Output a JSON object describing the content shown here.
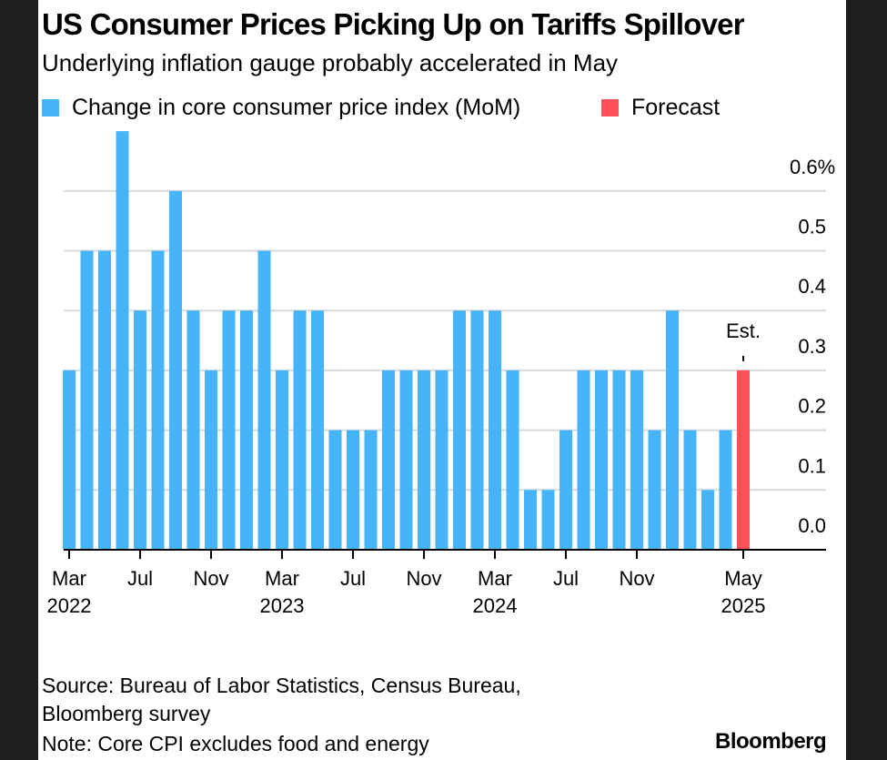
{
  "title": "US Consumer Prices Picking Up on Tariffs Spillover",
  "subtitle": "Underlying inflation gauge probably accelerated in May",
  "legend": [
    {
      "label": "Change in core consumer price index (MoM)",
      "color": "#45b4f8"
    },
    {
      "label": "Forecast",
      "color": "#ff4f59"
    }
  ],
  "chart_data": {
    "type": "bar",
    "categories": [
      "Mar 2022",
      "Apr 2022",
      "May 2022",
      "Jun 2022",
      "Jul 2022",
      "Aug 2022",
      "Sep 2022",
      "Oct 2022",
      "Nov 2022",
      "Dec 2022",
      "Jan 2023",
      "Feb 2023",
      "Mar 2023",
      "Apr 2023",
      "May 2023",
      "Jun 2023",
      "Jul 2023",
      "Aug 2023",
      "Sep 2023",
      "Oct 2023",
      "Nov 2023",
      "Dec 2023",
      "Jan 2024",
      "Feb 2024",
      "Mar 2024",
      "Apr 2024",
      "May 2024",
      "Jun 2024",
      "Jul 2024",
      "Aug 2024",
      "Sep 2024",
      "Oct 2024",
      "Nov 2024",
      "Dec 2024",
      "Jan 2025",
      "Feb 2025",
      "Mar 2025",
      "Apr 2025",
      "May 2025"
    ],
    "series": [
      {
        "name": "Change in core consumer price index (MoM)",
        "values": [
          0.3,
          0.5,
          0.5,
          0.7,
          0.4,
          0.5,
          0.6,
          0.4,
          0.3,
          0.4,
          0.4,
          0.5,
          0.3,
          0.4,
          0.4,
          0.2,
          0.2,
          0.2,
          0.3,
          0.3,
          0.3,
          0.3,
          0.4,
          0.4,
          0.4,
          0.3,
          0.1,
          0.1,
          0.2,
          0.3,
          0.3,
          0.3,
          0.3,
          0.2,
          0.4,
          0.2,
          0.1,
          0.2,
          null
        ]
      },
      {
        "name": "Forecast",
        "values": [
          null,
          null,
          null,
          null,
          null,
          null,
          null,
          null,
          null,
          null,
          null,
          null,
          null,
          null,
          null,
          null,
          null,
          null,
          null,
          null,
          null,
          null,
          null,
          null,
          null,
          null,
          null,
          null,
          null,
          null,
          null,
          null,
          null,
          null,
          null,
          null,
          null,
          null,
          0.3
        ]
      }
    ],
    "ylim": [
      0,
      0.7
    ],
    "yticks": [
      "0.0",
      "0.1",
      "0.2",
      "0.3",
      "0.4",
      "0.5",
      "0.6%"
    ],
    "ytick_values": [
      0,
      0.1,
      0.2,
      0.3,
      0.4,
      0.5,
      0.6
    ],
    "xticks": [
      {
        "index": 0,
        "month": "Mar",
        "year": "2022"
      },
      {
        "index": 4,
        "month": "Jul",
        "year": ""
      },
      {
        "index": 8,
        "month": "Nov",
        "year": ""
      },
      {
        "index": 12,
        "month": "Mar",
        "year": "2023"
      },
      {
        "index": 16,
        "month": "Jul",
        "year": ""
      },
      {
        "index": 20,
        "month": "Nov",
        "year": ""
      },
      {
        "index": 24,
        "month": "Mar",
        "year": "2024"
      },
      {
        "index": 28,
        "month": "Jul",
        "year": ""
      },
      {
        "index": 32,
        "month": "Nov",
        "year": ""
      },
      {
        "index": 38,
        "month": "May",
        "year": "2025"
      }
    ],
    "annotation": "Est.",
    "grid": true,
    "y_axis_side": "right",
    "legend_position": "top-left"
  },
  "footer": {
    "source_line1": "Source: Bureau of Labor Statistics, Census Bureau,",
    "source_line2": "Bloomberg survey",
    "note": "Note: Core CPI excludes food and energy",
    "logo": "Bloomberg"
  }
}
